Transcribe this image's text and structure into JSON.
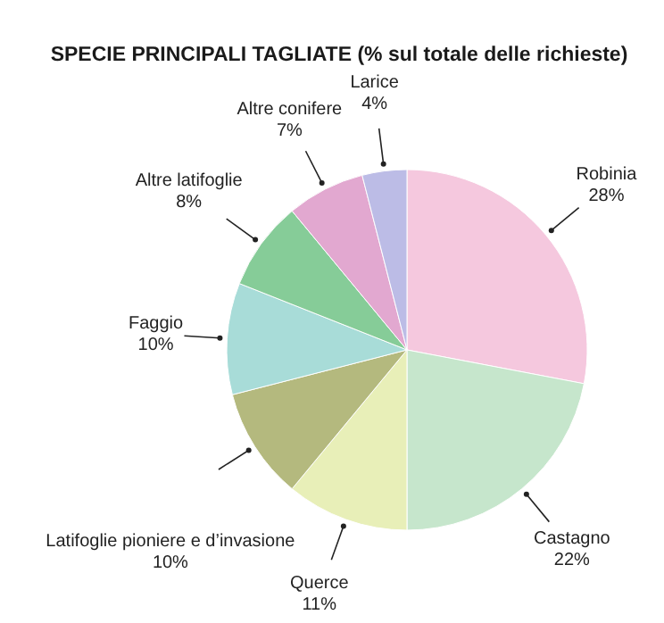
{
  "chart_data": {
    "type": "pie",
    "title": "SPECIE PRINCIPALI TAGLIATE (% sul totale delle richieste)",
    "categories": [
      "Robinia",
      "Castagno",
      "Querce",
      "Latifoglie pioniere e d’invasione",
      "Faggio",
      "Altre latifoglie",
      "Altre conifere",
      "Larice"
    ],
    "values": [
      28,
      22,
      11,
      10,
      10,
      8,
      7,
      4
    ],
    "colors": [
      "#f5c8de",
      "#c6e6cc",
      "#e8efb8",
      "#b4b97e",
      "#a8dcd8",
      "#86cc98",
      "#e2a8d0",
      "#bcbce6"
    ],
    "value_labels": [
      "28%",
      "22%",
      "11%",
      "10%",
      "10%",
      "8%",
      "7%",
      "4%"
    ]
  }
}
